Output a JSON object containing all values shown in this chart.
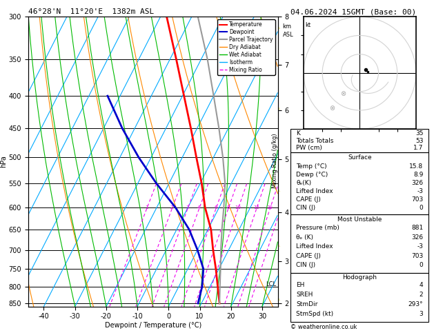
{
  "title_left": "46°28'N  11°20'E  1382m ASL",
  "title_right": "04.06.2024 15GMT (Base: 00)",
  "xlabel": "Dewpoint / Temperature (°C)",
  "ylabel_left": "hPa",
  "ylabel_mixing": "Mixing Ratio (g/kg)",
  "pressure_levels": [
    300,
    350,
    400,
    450,
    500,
    550,
    600,
    650,
    700,
    750,
    800,
    850
  ],
  "pressure_ticks": [
    300,
    350,
    400,
    450,
    500,
    550,
    600,
    650,
    700,
    750,
    800,
    850
  ],
  "temp_range": [
    -45,
    35
  ],
  "temp_color": "#ff0000",
  "dewpoint_color": "#0000cc",
  "parcel_color": "#999999",
  "dry_adiabat_color": "#ff8800",
  "wet_adiabat_color": "#00bb00",
  "isotherm_color": "#00aaff",
  "mixing_ratio_color": "#ee00ee",
  "mixing_ratio_values": [
    1,
    2,
    3,
    4,
    6,
    8,
    10,
    15,
    20,
    25
  ],
  "km_ticks": [
    2,
    3,
    4,
    5,
    6,
    7,
    8
  ],
  "km_pressures": [
    850,
    720,
    595,
    485,
    400,
    335,
    278
  ],
  "lcl_pressure": 793,
  "stats_k": 35,
  "stats_tt": 53,
  "stats_pw": 1.7,
  "surf_temp": 15.8,
  "surf_dewp": 8.9,
  "surf_theta_e": 326,
  "surf_li": -3,
  "surf_cape": 703,
  "surf_cin": 0,
  "mu_pressure": 881,
  "mu_theta_e": 326,
  "mu_li": -3,
  "mu_cape": 703,
  "mu_cin": 0,
  "hodo_eh": 4,
  "hodo_sreh": 2,
  "hodo_stmdir": "293°",
  "hodo_stmspd": 3,
  "yellow_color": "#cccc00",
  "bg_color": "#ffffff"
}
